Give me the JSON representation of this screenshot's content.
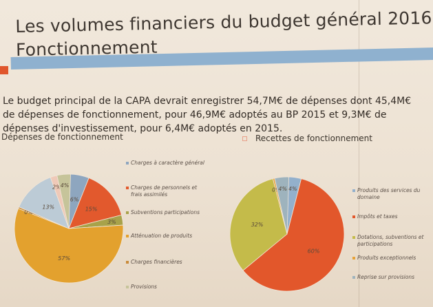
{
  "slide": {
    "title_line1": "Les volumes financiers du budget général 2016:",
    "title_line2": "Fonctionnement",
    "intro_text": "Le budget principal de la CAPA devrait enregistrer 54,7M€ de dépenses dont 45,4M€ de dépenses de fonctionnement, pour 46,9M€ adoptés au BP 2015 et 9,3M€ de dépenses d'investissement, pour 6,4M€ adoptés en 2015.",
    "left_section_title": "Dépenses de fonctionnement",
    "right_section_title": "Recettes de fonctionnement",
    "colors": {
      "band_red": "#e0562c",
      "band_blue": "#8fb1cf",
      "background": "#efe4d6"
    }
  },
  "chart_data": [
    {
      "type": "pie",
      "title": "Dépenses de fonctionnement",
      "legend_position": "right",
      "slices": [
        {
          "label": "Charges à caractère général",
          "value": 6,
          "color": "#8ea6bf"
        },
        {
          "label": "Charges de personnels et frais assimilés",
          "value": 15,
          "color": "#e2592d"
        },
        {
          "label": "Subventions participations",
          "value": 3,
          "color": "#a8a24a"
        },
        {
          "label": "Atténuation de produits",
          "value": 57,
          "color": "#e3a12e"
        },
        {
          "label": "Charges financières",
          "value": 0,
          "color": "#c98b3a"
        },
        {
          "label": "",
          "value": 13,
          "color": "#bccbd6"
        },
        {
          "label": "",
          "value": 2,
          "color": "#efc9b8"
        },
        {
          "label": "Provisions",
          "value": 4,
          "color": "#c6c49a"
        }
      ],
      "legend": [
        "Charges à caractère général",
        "Charges de personnels et frais assimilés",
        "Subventions participations",
        "Atténuation de produits",
        "Charges financières",
        "Provisions"
      ],
      "data_labels": [
        "6%",
        "15%",
        "3%",
        "57%",
        "0%",
        "13%",
        "2%",
        "4%"
      ]
    },
    {
      "type": "pie",
      "title": "Recettes de fonctionnement",
      "legend_position": "right",
      "slices": [
        {
          "label": "Produits des services du domaine",
          "value": 4,
          "color": "#93b0cc"
        },
        {
          "label": "Impôts et taxes",
          "value": 60,
          "color": "#e2572b"
        },
        {
          "label": "Dotations, subventions et participations",
          "value": 32,
          "color": "#c4bb4a"
        },
        {
          "label": "Produits exceptionnels",
          "value": 0,
          "color": "#e6a23a"
        },
        {
          "label": "Reprise sur provisions",
          "value": 4,
          "color": "#9eb3bd"
        }
      ],
      "legend": [
        "Produits des services du domaine",
        "Impôts et taxes",
        "Dotations, subventions et participations",
        "Produits exceptionnels",
        "Reprise sur provisions"
      ],
      "data_labels": [
        "4%",
        "60%",
        "32%",
        "0%",
        "4%"
      ]
    }
  ]
}
